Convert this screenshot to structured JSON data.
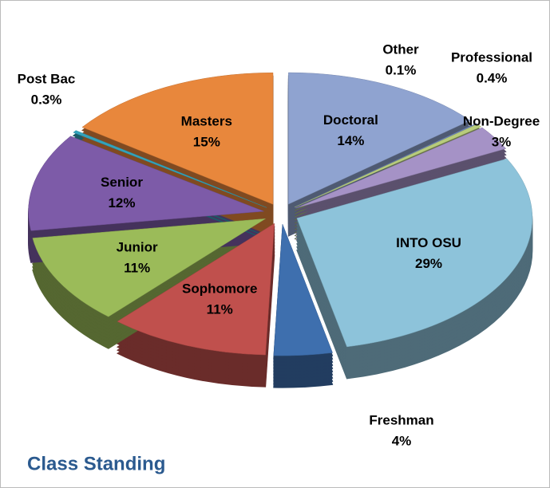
{
  "chart_data": {
    "type": "pie",
    "title": "Class Standing",
    "categories": [
      "Doctoral",
      "Other",
      "Professional",
      "Non-Degree",
      "INTO OSU",
      "Freshman",
      "Sophomore",
      "Junior",
      "Senior",
      "Post Bac",
      "Masters"
    ],
    "values": [
      14,
      0.1,
      0.4,
      3,
      29,
      4,
      11,
      11,
      12,
      0.3,
      15
    ],
    "value_labels": [
      "14%",
      "0.1%",
      "0.4%",
      "3%",
      "29%",
      "4%",
      "11%",
      "11%",
      "12%",
      "0.3%",
      "15%"
    ],
    "colors": [
      "#8fa3d0",
      "#6f86c0",
      "#b8cc7c",
      "#a592c6",
      "#8dc3da",
      "#3e6fae",
      "#c0504d",
      "#9bbb59",
      "#7d5ba8",
      "#33a3bb",
      "#e8873c"
    ]
  }
}
